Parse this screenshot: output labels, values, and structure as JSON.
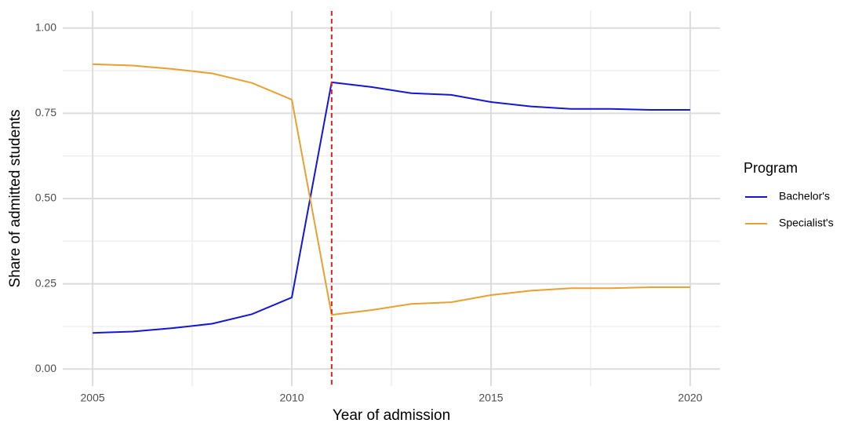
{
  "chart_data": {
    "type": "line",
    "x_label": "Year of admission",
    "y_label": "Share of admitted students",
    "legend_title": "Program",
    "legend": "right",
    "grid": true,
    "minor_grid": true,
    "x": [
      2005,
      2006,
      2007,
      2008,
      2009,
      2010,
      2011,
      2012,
      2013,
      2014,
      2015,
      2016,
      2017,
      2018,
      2019,
      2020
    ],
    "series": [
      {
        "name": "Bachelor's",
        "color": "#1515d6",
        "values": [
          0.106,
          0.11,
          0.12,
          0.133,
          0.161,
          0.21,
          0.841,
          0.827,
          0.809,
          0.804,
          0.783,
          0.77,
          0.763,
          0.763,
          0.76,
          0.76
        ]
      },
      {
        "name": "Specialist's",
        "color": "#e8a030",
        "values": [
          0.894,
          0.89,
          0.88,
          0.867,
          0.839,
          0.79,
          0.159,
          0.173,
          0.191,
          0.196,
          0.217,
          0.23,
          0.237,
          0.237,
          0.24,
          0.24
        ]
      }
    ],
    "vline": {
      "x": 2011,
      "color": "#e02020",
      "dashed": true
    },
    "xlim": [
      2004.25,
      2020.75
    ],
    "xticks": [
      2005,
      2010,
      2015,
      2020
    ],
    "ylim": [
      -0.05,
      1.05
    ],
    "yticks": [
      {
        "value": 0,
        "label": "0.00"
      },
      {
        "value": 0.25,
        "label": "0.25"
      },
      {
        "value": 0.5,
        "label": "0.50"
      },
      {
        "value": 0.75,
        "label": "0.75"
      },
      {
        "value": 1,
        "label": "1.00"
      }
    ]
  }
}
